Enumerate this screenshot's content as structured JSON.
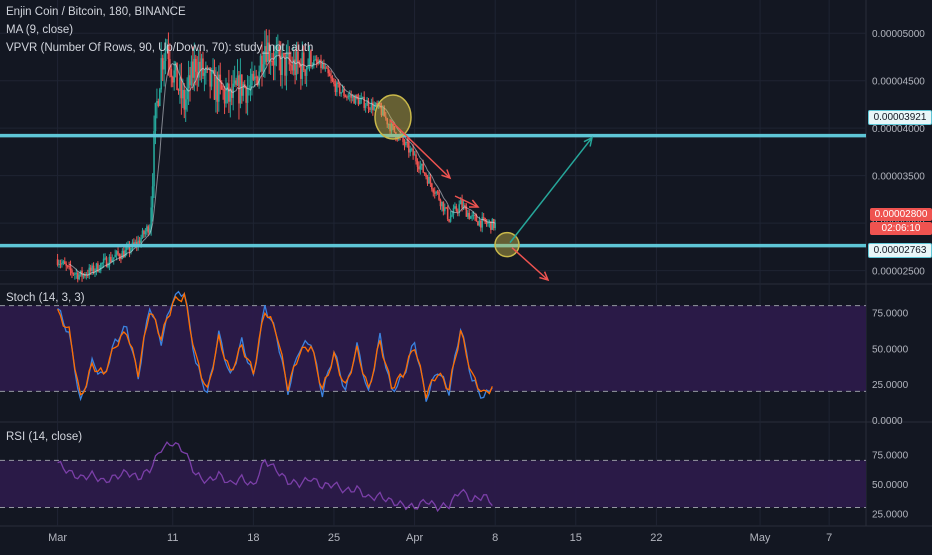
{
  "window": {
    "symbol_line": "Enjin Coin / Bitcoin, 180, BINANCE",
    "ma_line": "MA (9, close)",
    "vpvr_line": "VPVR (Number Of Rows, 90, Up/Down, 70): study_not_auth"
  },
  "price_tags": {
    "hline_upper": "0.00003921",
    "current_price": "0.00002800",
    "countdown": "02:06:10",
    "hline_lower": "0.00002763"
  },
  "colors": {
    "background": "#131722",
    "grid": "#1f2433",
    "bull": "#26a69a",
    "bear": "#ef5350",
    "hline": "#5ec6d6",
    "arrow_up": "#26a69a",
    "arrow_down": "#ef5350",
    "highlight": "#c9b84a",
    "stoch_k": "#3b83e0",
    "stoch_d": "#ff6d00",
    "osc_band": "#2b1a4a",
    "rsi_line": "#7b3fa8"
  },
  "chart_data": [
    {
      "type": "line",
      "name": "price",
      "y_ticks": [
        "0.00005000",
        "0.00004500",
        "0.00004000",
        "0.00003500",
        "0.00003000",
        "0.00002500"
      ],
      "ylim": [
        2.38e-05,
        5.35e-05
      ],
      "x_ticks": [
        "Mar",
        "11",
        "18",
        "25",
        "Apr",
        "8",
        "15",
        "22",
        "May",
        "7"
      ],
      "x_tick_days": [
        0,
        10,
        17,
        24,
        31,
        38,
        45,
        52,
        61,
        67
      ],
      "grid": true,
      "series": [
        {
          "x": [
            0,
            1,
            2,
            3,
            4,
            5,
            6,
            7,
            8,
            8.5,
            9,
            9.5,
            10,
            11,
            12,
            13,
            14,
            15,
            16,
            17,
            18,
            19,
            20,
            21,
            22,
            23,
            24,
            25,
            26,
            27,
            28,
            29,
            30,
            31,
            32,
            33,
            34,
            35,
            36,
            37,
            38
          ],
          "y": [
            2.62e-05,
            2.5e-05,
            2.45e-05,
            2.5e-05,
            2.58e-05,
            2.65e-05,
            2.7e-05,
            2.8e-05,
            2.98e-05,
            4.1e-05,
            4.7e-05,
            4.9e-05,
            4.6e-05,
            4.25e-05,
            4.7e-05,
            4.5e-05,
            4.4e-05,
            4.3e-05,
            4.45e-05,
            4.4e-05,
            4.9e-05,
            4.7e-05,
            4.65e-05,
            4.65e-05,
            4.7e-05,
            4.65e-05,
            4.45e-05,
            4.35e-05,
            4.3e-05,
            4.25e-05,
            4.2e-05,
            4e-05,
            3.85e-05,
            3.7e-05,
            3.5e-05,
            3.3e-05,
            3.05e-05,
            3.2e-05,
            3.05e-05,
            3e-05,
            2.98e-05
          ]
        }
      ],
      "horizontal_lines": [
        3.921e-05,
        2.763e-05
      ]
    },
    {
      "type": "line",
      "name_label": "Stoch (14, 3, 3)",
      "y_ticks": [
        "75.0000",
        "50.0000",
        "25.0000",
        "0.0000"
      ],
      "ylim": [
        0,
        93
      ],
      "band": [
        20,
        80
      ],
      "series": [
        {
          "x": [
            0,
            1,
            2,
            3,
            4,
            5,
            6,
            7,
            8,
            9,
            10,
            11,
            12,
            13,
            14,
            15,
            16,
            17,
            18,
            19,
            20,
            21,
            22,
            23,
            24,
            25,
            26,
            27,
            28,
            29,
            30,
            31,
            32,
            33,
            34,
            35,
            36,
            37,
            38
          ],
          "y": [
            78,
            60,
            12,
            40,
            30,
            55,
            65,
            30,
            80,
            55,
            85,
            90,
            40,
            18,
            60,
            30,
            55,
            30,
            80,
            60,
            20,
            50,
            55,
            18,
            48,
            20,
            52,
            18,
            58,
            20,
            30,
            55,
            15,
            35,
            20,
            65,
            28,
            15,
            28
          ]
        },
        {
          "x": [
            0,
            1,
            2,
            3,
            4,
            5,
            6,
            7,
            8,
            9,
            10,
            11,
            12,
            13,
            14,
            15,
            16,
            17,
            18,
            19,
            20,
            21,
            22,
            23,
            24,
            25,
            26,
            27,
            28,
            29,
            30,
            31,
            32,
            33,
            34,
            35,
            36,
            37,
            38
          ],
          "y": [
            75,
            62,
            15,
            38,
            32,
            52,
            62,
            33,
            77,
            58,
            82,
            87,
            44,
            20,
            57,
            33,
            52,
            33,
            77,
            62,
            23,
            47,
            52,
            21,
            45,
            23,
            49,
            21,
            55,
            23,
            32,
            52,
            18,
            33,
            22,
            62,
            31,
            18,
            25
          ]
        }
      ]
    },
    {
      "type": "line",
      "name_label": "RSI (14, close)",
      "y_ticks": [
        "75.0000",
        "50.0000",
        "25.0000"
      ],
      "ylim": [
        16,
        100
      ],
      "band": [
        30,
        70
      ],
      "series": [
        {
          "x": [
            0,
            1,
            2,
            3,
            4,
            5,
            6,
            7,
            8,
            9,
            10,
            11,
            12,
            13,
            14,
            15,
            16,
            17,
            18,
            19,
            20,
            21,
            22,
            23,
            24,
            25,
            26,
            27,
            28,
            29,
            30,
            31,
            32,
            33,
            34,
            35,
            36,
            37,
            38
          ],
          "y": [
            68,
            60,
            55,
            58,
            52,
            56,
            60,
            55,
            62,
            80,
            85,
            78,
            58,
            52,
            58,
            50,
            55,
            48,
            70,
            62,
            52,
            50,
            55,
            48,
            50,
            44,
            46,
            38,
            40,
            35,
            32,
            30,
            36,
            30,
            32,
            45,
            36,
            40,
            32
          ]
        }
      ]
    }
  ]
}
